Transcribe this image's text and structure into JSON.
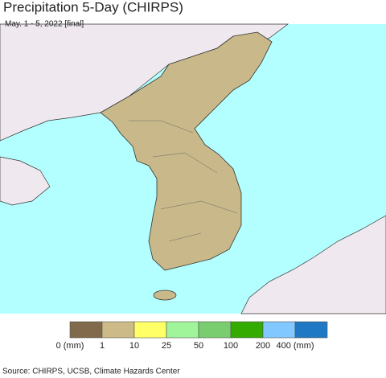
{
  "header": {
    "title": "Precipitation 5-Day (CHIRPS)",
    "subtitle": "May. 1 - 5, 2022 [final]"
  },
  "legend": {
    "colors": [
      "#806a4b",
      "#ccbb88",
      "#ffff66",
      "#a0f59a",
      "#7acd6e",
      "#33ab00",
      "#80c8ff",
      "#1f78c4"
    ],
    "labels": [
      "0 (mm)",
      "1",
      "10",
      "25",
      "50",
      "100",
      "200",
      "400 (mm)"
    ]
  },
  "source": "Source: CHIRPS, UCSB, Climate Hazards Center"
}
